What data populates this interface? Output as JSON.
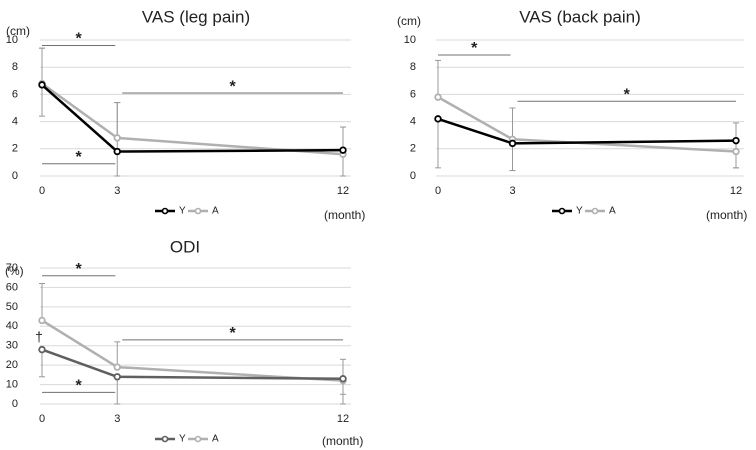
{
  "colors": {
    "Y": "#000000",
    "A": "#b0b0b0",
    "Y_odi": "#606060",
    "grid": "#d9d9d9",
    "sigline": "#707070",
    "text": "#222222"
  },
  "legend": {
    "y_label": "Y",
    "a_label": "A"
  },
  "chart_data": [
    {
      "id": "vas-leg",
      "type": "line",
      "title": "VAS (leg pain)",
      "ylabel": "(cm)",
      "xlabel": "(month)",
      "x": [
        0,
        3,
        12
      ],
      "ylim": [
        0,
        10
      ],
      "yticks": [
        0,
        2,
        4,
        6,
        8,
        10
      ],
      "series": [
        {
          "name": "Y",
          "values": [
            6.7,
            1.8,
            1.9
          ],
          "err_up": [
            2.7,
            3.6,
            1.7
          ],
          "err_down": [
            2.3,
            1.8,
            1.9
          ]
        },
        {
          "name": "A",
          "values": [
            6.8,
            2.8,
            1.6
          ],
          "err_up": [
            2.6,
            2.6,
            2.0
          ],
          "err_down": [
            0,
            0,
            0
          ]
        }
      ],
      "significance": [
        {
          "label": "*",
          "from": 0,
          "to": 3,
          "level": 9.6
        },
        {
          "label": "*",
          "from": 3,
          "to": 12,
          "level": 6.1
        },
        {
          "label": "*",
          "from": 0,
          "to": 3,
          "level": 0.9
        }
      ],
      "annotations": []
    },
    {
      "id": "vas-back",
      "type": "line",
      "title": "VAS (back pain)",
      "ylabel": "(cm)",
      "xlabel": "(month)",
      "x": [
        0,
        3,
        12
      ],
      "ylim": [
        0,
        10
      ],
      "yticks": [
        0,
        2,
        4,
        6,
        8,
        10
      ],
      "series": [
        {
          "name": "Y",
          "values": [
            4.2,
            2.4,
            2.6
          ],
          "err_up": [
            0,
            2.6,
            1.3
          ],
          "err_down": [
            3.6,
            2.0,
            2.0
          ]
        },
        {
          "name": "A",
          "values": [
            5.8,
            2.7,
            1.8
          ],
          "err_up": [
            2.7,
            0,
            0
          ],
          "err_down": [
            0,
            2.3,
            1.2
          ]
        }
      ],
      "significance": [
        {
          "label": "*",
          "from": 0,
          "to": 3,
          "level": 8.9
        },
        {
          "label": "*",
          "from": 3,
          "to": 12,
          "level": 5.5
        }
      ],
      "annotations": []
    },
    {
      "id": "odi",
      "type": "line",
      "title": "ODI",
      "ylabel": "(%)",
      "xlabel": "(month)",
      "x": [
        0,
        3,
        12
      ],
      "ylim": [
        0,
        70
      ],
      "yticks": [
        0,
        10,
        20,
        30,
        40,
        50,
        60,
        70
      ],
      "series": [
        {
          "name": "Y",
          "values": [
            28,
            14,
            13
          ],
          "err_up": [
            0,
            0,
            0
          ],
          "err_down": [
            14,
            14,
            13
          ]
        },
        {
          "name": "A",
          "values": [
            43,
            19,
            12
          ],
          "err_up": [
            19,
            13,
            11
          ],
          "err_down": [
            0,
            0,
            7
          ]
        }
      ],
      "significance": [
        {
          "label": "*",
          "from": 0,
          "to": 3,
          "level": 66
        },
        {
          "label": "*",
          "from": 3,
          "to": 12,
          "level": 33
        },
        {
          "label": "*",
          "from": 0,
          "to": 3,
          "level": 6
        }
      ],
      "annotations": [
        {
          "label": "†",
          "x": 0,
          "y": 34
        }
      ]
    }
  ]
}
